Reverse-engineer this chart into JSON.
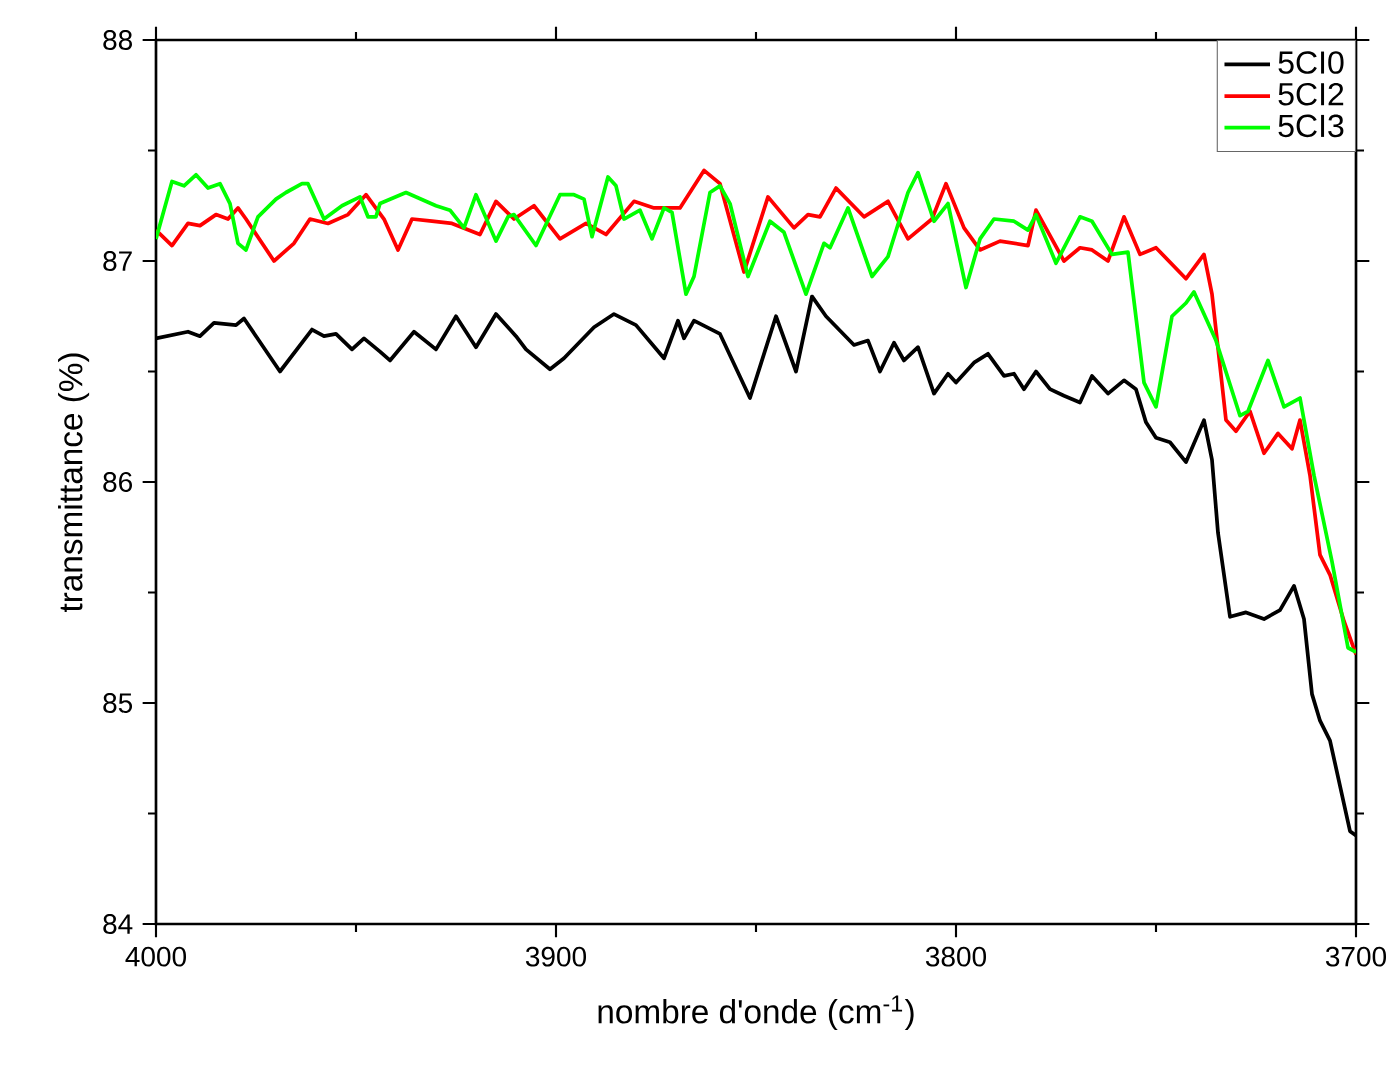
{
  "chart_data": {
    "type": "line",
    "xlabel": "nombre d'onde (cm$^{-1}$)",
    "ylabel": "transmittance (%)",
    "xlim": [
      4000,
      3700
    ],
    "xticks": [
      4000,
      3900,
      3800,
      3700
    ],
    "ylim": [
      84,
      88
    ],
    "yticks": [
      84,
      85,
      86,
      87,
      88
    ],
    "legend": "top right",
    "grid": false,
    "marker": "none",
    "line_style": "solid",
    "series": [
      {
        "name": "5CI0",
        "color": "#000000",
        "x": [
          4000,
          3992,
          3989,
          3985.5,
          3980,
          3978,
          3969,
          3961,
          3958,
          3955,
          3951,
          3948,
          3944,
          3941.5,
          3935.5,
          3930,
          3925,
          3920,
          3915,
          3910,
          3907.5,
          3901.5,
          3898,
          3890.5,
          3885.5,
          3880,
          3873,
          3869.5,
          3868,
          3865.5,
          3859,
          3851.5,
          3845,
          3840,
          3836,
          3832.5,
          3825.5,
          3822,
          3819,
          3815.5,
          3813,
          3809.5,
          3805.5,
          3802,
          3800,
          3795.5,
          3792,
          3788,
          3785.5,
          3783,
          3780,
          3776.5,
          3773,
          3769,
          3766,
          3762,
          3758,
          3755,
          3752.5,
          3750,
          3746.5,
          3742.5,
          3738,
          3736,
          3734.5,
          3731.5,
          3727.5,
          3723,
          3719,
          3715.5,
          3713,
          3711,
          3709,
          3706.5,
          3701.5,
          3700
        ],
        "values": [
          86.65,
          86.68,
          86.66,
          86.72,
          86.71,
          86.74,
          86.5,
          86.69,
          86.66,
          86.67,
          86.6,
          86.65,
          86.59,
          86.55,
          86.68,
          86.6,
          86.75,
          86.61,
          86.76,
          86.66,
          86.6,
          86.51,
          86.56,
          86.7,
          86.76,
          86.71,
          86.56,
          86.73,
          86.65,
          86.73,
          86.67,
          86.38,
          86.75,
          86.5,
          86.84,
          86.75,
          86.62,
          86.64,
          86.5,
          86.63,
          86.55,
          86.61,
          86.4,
          86.49,
          86.45,
          86.54,
          86.58,
          86.48,
          86.49,
          86.42,
          86.5,
          86.42,
          86.39,
          86.36,
          86.48,
          86.4,
          86.46,
          86.42,
          86.27,
          86.2,
          86.18,
          86.09,
          86.28,
          86.1,
          85.77,
          85.39,
          85.41,
          85.38,
          85.42,
          85.53,
          85.38,
          85.04,
          84.92,
          84.83,
          84.42,
          84.4
        ]
      },
      {
        "name": "5CI2",
        "color": "#ff0000",
        "x": [
          4000,
          3996,
          3992,
          3989,
          3985,
          3982,
          3979.5,
          3977.5,
          3970.5,
          3965.5,
          3961.5,
          3957,
          3952,
          3947.5,
          3943,
          3939.5,
          3936,
          3931,
          3926,
          3919,
          3915,
          3910.5,
          3905.5,
          3899,
          3892.5,
          3887.5,
          3880.5,
          3875.5,
          3869,
          3863,
          3859,
          3853,
          3847,
          3840.5,
          3837,
          3834,
          3830,
          3823,
          3817,
          3812,
          3806,
          3802.5,
          3798,
          3794,
          3789,
          3782,
          3780,
          3773,
          3769,
          3766,
          3762,
          3758,
          3754,
          3750,
          3742.5,
          3738,
          3736,
          3732.5,
          3730,
          3726.5,
          3723,
          3719.5,
          3716,
          3714,
          3711.5,
          3709,
          3706.5,
          3703,
          3700
        ],
        "values": [
          87.14,
          87.07,
          87.17,
          87.16,
          87.21,
          87.19,
          87.24,
          87.19,
          87.0,
          87.08,
          87.19,
          87.17,
          87.21,
          87.3,
          87.19,
          87.05,
          87.19,
          87.18,
          87.17,
          87.12,
          87.27,
          87.19,
          87.25,
          87.1,
          87.17,
          87.12,
          87.27,
          87.24,
          87.24,
          87.41,
          87.35,
          86.95,
          87.29,
          87.15,
          87.21,
          87.2,
          87.33,
          87.2,
          87.27,
          87.1,
          87.19,
          87.35,
          87.15,
          87.05,
          87.09,
          87.07,
          87.23,
          87.0,
          87.06,
          87.05,
          87.0,
          87.2,
          87.03,
          87.06,
          86.92,
          87.03,
          86.85,
          86.28,
          86.23,
          86.32,
          86.13,
          86.22,
          86.15,
          86.28,
          86.03,
          85.67,
          85.58,
          85.37,
          85.22
        ]
      },
      {
        "name": "5CI3",
        "color": "#00ff00",
        "x": [
          4000,
          3996,
          3993,
          3990,
          3987,
          3984,
          3981.5,
          3979.5,
          3977.5,
          3974.5,
          3970,
          3967.5,
          3963.5,
          3962,
          3958,
          3953.5,
          3949,
          3947,
          3945,
          3944,
          3937.5,
          3930,
          3926.5,
          3923,
          3920,
          3915,
          3912,
          3910.5,
          3905,
          3899,
          3895.5,
          3893,
          3891,
          3887,
          3885,
          3883,
          3879,
          3876,
          3873,
          3871,
          3867.5,
          3865.5,
          3861.5,
          3859,
          3856.5,
          3852,
          3846.5,
          3843,
          3837.5,
          3833,
          3831.5,
          3827,
          3821,
          3817,
          3812,
          3809.5,
          3805.5,
          3802,
          3797.5,
          3794,
          3790.5,
          3785.5,
          3782,
          3780,
          3775,
          3769,
          3766,
          3761,
          3757,
          3753,
          3750,
          3746,
          3742.5,
          3740.5,
          3735,
          3729,
          3727,
          3722,
          3718,
          3714,
          3710.5,
          3706,
          3702,
          3700
        ],
        "values": [
          87.1,
          87.36,
          87.34,
          87.39,
          87.33,
          87.35,
          87.26,
          87.08,
          87.05,
          87.2,
          87.28,
          87.31,
          87.35,
          87.35,
          87.19,
          87.25,
          87.29,
          87.2,
          87.2,
          87.26,
          87.31,
          87.25,
          87.23,
          87.15,
          87.3,
          87.09,
          87.2,
          87.21,
          87.07,
          87.3,
          87.3,
          87.28,
          87.11,
          87.38,
          87.34,
          87.19,
          87.23,
          87.1,
          87.24,
          87.22,
          86.85,
          86.93,
          87.31,
          87.34,
          87.26,
          86.93,
          87.18,
          87.13,
          86.85,
          87.08,
          87.06,
          87.24,
          86.93,
          87.02,
          87.31,
          87.4,
          87.18,
          87.26,
          86.88,
          87.1,
          87.19,
          87.18,
          87.14,
          87.21,
          86.99,
          87.2,
          87.18,
          87.03,
          87.04,
          86.45,
          86.34,
          86.75,
          86.81,
          86.86,
          86.64,
          86.3,
          86.32,
          86.55,
          86.34,
          86.38,
          86.03,
          85.64,
          85.25,
          85.23
        ]
      }
    ]
  }
}
